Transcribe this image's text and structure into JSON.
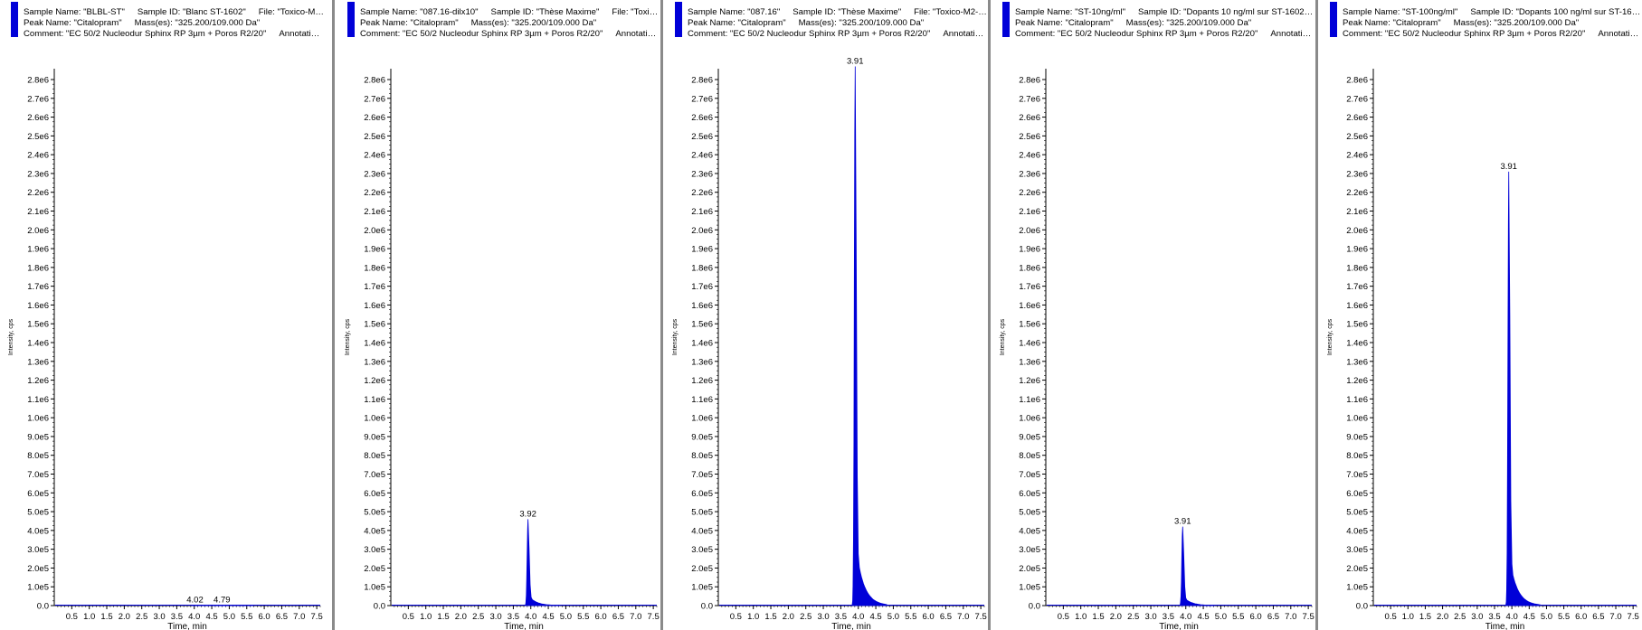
{
  "colors": {
    "trace": "#0000d8",
    "axis": "#000000",
    "divider": "#8a8a8a"
  },
  "chart_data": [
    {
      "type": "area",
      "header": {
        "sample_name": "Sample Name: \"BLBL-ST\"",
        "sample_id": "Sample ID: \"Blanc ST-1602\"",
        "file": "File: \"Toxico-M2-...",
        "peak_name": "Peak Name: \"Citalopram\"",
        "masses": "Mass(es): \"325.200/109.000 Da\"",
        "comment": "Comment: \"EC 50/2 Nucleodur Sphinx RP 3µm  + Poros R2/20\"",
        "annotation": "Annotation:..."
      },
      "xlabel": "Time, min",
      "ylabel": "Intensity, cps",
      "xlim": [
        0,
        7.6
      ],
      "ylim": [
        0,
        2900000.0
      ],
      "x_ticks": [
        "0.5",
        "1.0",
        "1.5",
        "2.0",
        "2.5",
        "3.0",
        "3.5",
        "4.0",
        "4.5",
        "5.0",
        "5.5",
        "6.0",
        "6.5",
        "7.0",
        "7.5"
      ],
      "y_ticks": [
        "0.0",
        "1.0e5",
        "2.0e5",
        "3.0e5",
        "4.0e5",
        "5.0e5",
        "6.0e5",
        "7.0e5",
        "8.0e5",
        "9.0e5",
        "1.0e6",
        "1.1e6",
        "1.2e6",
        "1.3e6",
        "1.4e6",
        "1.5e6",
        "1.6e6",
        "1.7e6",
        "1.8e6",
        "1.9e6",
        "2.0e6",
        "2.1e6",
        "2.2e6",
        "2.3e6",
        "2.4e6",
        "2.5e6",
        "2.6e6",
        "2.7e6",
        "2.8e6"
      ],
      "peaks": [
        {
          "label": "4.02",
          "rt": 4.02,
          "height": 3000
        },
        {
          "label": "4.79",
          "rt": 4.79,
          "height": 2000
        }
      ]
    },
    {
      "type": "area",
      "header": {
        "sample_name": "Sample Name: \"087.16-dilx10\"",
        "sample_id": "Sample ID: \"Thèse Maxime\"",
        "file": "File: \"Toxico-...",
        "peak_name": "Peak Name: \"Citalopram\"",
        "masses": "Mass(es): \"325.200/109.000 Da\"",
        "comment": "Comment: \"EC 50/2 Nucleodur Sphinx RP 3µm  + Poros R2/20\"",
        "annotation": "Annotation:..."
      },
      "xlabel": "Time, min",
      "ylabel": "Intensity, cps",
      "xlim": [
        0,
        7.6
      ],
      "ylim": [
        0,
        2900000.0
      ],
      "x_ticks": [
        "0.5",
        "1.0",
        "1.5",
        "2.0",
        "2.5",
        "3.0",
        "3.5",
        "4.0",
        "4.5",
        "5.0",
        "5.5",
        "6.0",
        "6.5",
        "7.0",
        "7.5"
      ],
      "y_ticks": [
        "0.0",
        "1.0e5",
        "2.0e5",
        "3.0e5",
        "4.0e5",
        "5.0e5",
        "6.0e5",
        "7.0e5",
        "8.0e5",
        "9.0e5",
        "1.0e6",
        "1.1e6",
        "1.2e6",
        "1.3e6",
        "1.4e6",
        "1.5e6",
        "1.6e6",
        "1.7e6",
        "1.8e6",
        "1.9e6",
        "2.0e6",
        "2.1e6",
        "2.2e6",
        "2.3e6",
        "2.4e6",
        "2.5e6",
        "2.6e6",
        "2.7e6",
        "2.8e6"
      ],
      "peaks": [
        {
          "label": "3.92",
          "rt": 3.92,
          "height": 460000
        }
      ]
    },
    {
      "type": "area",
      "header": {
        "sample_name": "Sample Name: \"087.16\"",
        "sample_id": "Sample ID: \"Thèse Maxime\"",
        "file": "File: \"Toxico-M2-PO...",
        "peak_name": "Peak Name: \"Citalopram\"",
        "masses": "Mass(es): \"325.200/109.000 Da\"",
        "comment": "Comment: \"EC 50/2 Nucleodur Sphinx RP 3µm  + Poros R2/20\"",
        "annotation": "Annotation:..."
      },
      "xlabel": "Time, min",
      "ylabel": "Intensity, cps",
      "xlim": [
        0,
        7.6
      ],
      "ylim": [
        0,
        2900000.0
      ],
      "x_ticks": [
        "0.5",
        "1.0",
        "1.5",
        "2.0",
        "2.5",
        "3.0",
        "3.5",
        "4.0",
        "4.5",
        "5.0",
        "5.5",
        "6.0",
        "6.5",
        "7.0",
        "7.5"
      ],
      "y_ticks": [
        "0.0",
        "1.0e5",
        "2.0e5",
        "3.0e5",
        "4.0e5",
        "5.0e5",
        "6.0e5",
        "7.0e5",
        "8.0e5",
        "9.0e5",
        "1.0e6",
        "1.1e6",
        "1.2e6",
        "1.3e6",
        "1.4e6",
        "1.5e6",
        "1.6e6",
        "1.7e6",
        "1.8e6",
        "1.9e6",
        "2.0e6",
        "2.1e6",
        "2.2e6",
        "2.3e6",
        "2.4e6",
        "2.5e6",
        "2.6e6",
        "2.7e6",
        "2.8e6"
      ],
      "peaks": [
        {
          "label": "3.91",
          "rt": 3.91,
          "height": 2870000
        }
      ]
    },
    {
      "type": "area",
      "header": {
        "sample_name": "Sample Name: \"ST-10ng/ml\"",
        "sample_id": "Sample ID: \"Dopants 10 ng/ml sur ST-1602\"",
        "file": "...",
        "peak_name": "Peak Name: \"Citalopram\"",
        "masses": "Mass(es): \"325.200/109.000 Da\"",
        "comment": "Comment: \"EC 50/2 Nucleodur Sphinx RP 3µm  + Poros R2/20\"",
        "annotation": "Annotation:..."
      },
      "xlabel": "Time, min",
      "ylabel": "Intensity, cps",
      "xlim": [
        0,
        7.6
      ],
      "ylim": [
        0,
        2900000.0
      ],
      "x_ticks": [
        "0.5",
        "1.0",
        "1.5",
        "2.0",
        "2.5",
        "3.0",
        "3.5",
        "4.0",
        "4.5",
        "5.0",
        "5.5",
        "6.0",
        "6.5",
        "7.0",
        "7.5"
      ],
      "y_ticks": [
        "0.0",
        "1.0e5",
        "2.0e5",
        "3.0e5",
        "4.0e5",
        "5.0e5",
        "6.0e5",
        "7.0e5",
        "8.0e5",
        "9.0e5",
        "1.0e6",
        "1.1e6",
        "1.2e6",
        "1.3e6",
        "1.4e6",
        "1.5e6",
        "1.6e6",
        "1.7e6",
        "1.8e6",
        "1.9e6",
        "2.0e6",
        "2.1e6",
        "2.2e6",
        "2.3e6",
        "2.4e6",
        "2.5e6",
        "2.6e6",
        "2.7e6",
        "2.8e6"
      ],
      "peaks": [
        {
          "label": "3.91",
          "rt": 3.91,
          "height": 420000
        }
      ]
    },
    {
      "type": "area",
      "header": {
        "sample_name": "Sample Name: \"ST-100ng/ml\"",
        "sample_id": "Sample ID: \"Dopants 100 ng/ml sur ST-1602...\"",
        "file": "",
        "peak_name": "Peak Name: \"Citalopram\"",
        "masses": "Mass(es): \"325.200/109.000 Da\"",
        "comment": "Comment: \"EC 50/2 Nucleodur Sphinx RP 3µm  + Poros R2/20\"",
        "annotation": "Annotation:..."
      },
      "xlabel": "Time, min",
      "ylabel": "Intensity, cps",
      "xlim": [
        0,
        7.6
      ],
      "ylim": [
        0,
        2900000.0
      ],
      "x_ticks": [
        "0.5",
        "1.0",
        "1.5",
        "2.0",
        "2.5",
        "3.0",
        "3.5",
        "4.0",
        "4.5",
        "5.0",
        "5.5",
        "6.0",
        "6.5",
        "7.0",
        "7.5"
      ],
      "y_ticks": [
        "0.0",
        "1.0e5",
        "2.0e5",
        "3.0e5",
        "4.0e5",
        "5.0e5",
        "6.0e5",
        "7.0e5",
        "8.0e5",
        "9.0e5",
        "1.0e6",
        "1.1e6",
        "1.2e6",
        "1.3e6",
        "1.4e6",
        "1.5e6",
        "1.6e6",
        "1.7e6",
        "1.8e6",
        "1.9e6",
        "2.0e6",
        "2.1e6",
        "2.2e6",
        "2.3e6",
        "2.4e6",
        "2.5e6",
        "2.6e6",
        "2.7e6",
        "2.8e6"
      ],
      "peaks": [
        {
          "label": "3.91",
          "rt": 3.91,
          "height": 2310000
        }
      ]
    }
  ]
}
